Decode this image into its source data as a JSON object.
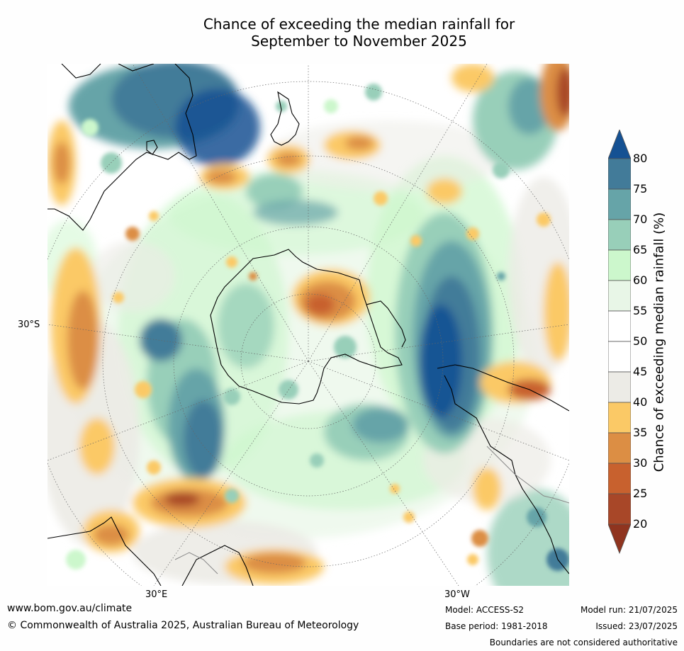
{
  "title_line1": "Chance of exceeding the median rainfall for",
  "title_line2": "September to November 2025",
  "map": {
    "projection": "south polar stereographic",
    "lat_labels": [
      "30°S"
    ],
    "lon_labels": [
      "30°E",
      "30°W"
    ]
  },
  "colorbar": {
    "label": "Chance of exceeding median rainfall (%)",
    "ticks": [
      "20",
      "25",
      "30",
      "35",
      "40",
      "45",
      "50",
      "55",
      "60",
      "65",
      "70",
      "75",
      "80"
    ],
    "bins": [
      {
        "range": "<20",
        "color": "#8f341f"
      },
      {
        "range": "20-25",
        "color": "#a84728"
      },
      {
        "range": "25-30",
        "color": "#c8612e"
      },
      {
        "range": "30-35",
        "color": "#dc8e44"
      },
      {
        "range": "35-40",
        "color": "#fbc966"
      },
      {
        "range": "40-45",
        "color": "#ecebe6"
      },
      {
        "range": "45-50",
        "color": "#ffffff"
      },
      {
        "range": "50-55",
        "color": "#ffffff"
      },
      {
        "range": "55-60",
        "color": "#e8f6e7"
      },
      {
        "range": "60-65",
        "color": "#ccf7cc"
      },
      {
        "range": "65-70",
        "color": "#98cfb9"
      },
      {
        "range": "70-75",
        "color": "#66a4a8"
      },
      {
        "range": "75-80",
        "color": "#427b99"
      },
      {
        "range": ">80",
        "color": "#155193"
      }
    ]
  },
  "footer": {
    "website": "www.bom.gov.au/climate",
    "copyright": "© Commonwealth of Australia 2025, Australian Bureau of Meteorology",
    "model": "Model: ACCESS-S2",
    "base_period": "Base period: 1981-2018",
    "model_run": "Model run: 21/07/2025",
    "issued": "Issued: 23/07/2025",
    "disclaimer": "Boundaries are not considered authoritative"
  }
}
